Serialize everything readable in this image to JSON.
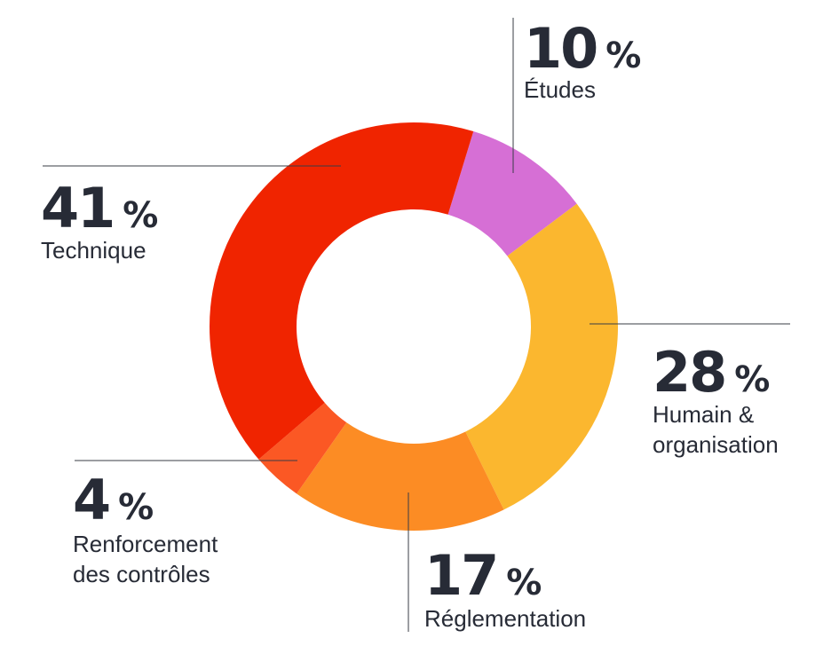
{
  "chart_data": {
    "type": "pie",
    "donut": true,
    "categories": [
      "Études",
      "Humain & organisation",
      "Réglementation",
      "Renforcement des contrôles",
      "Technique"
    ],
    "values": [
      10,
      28,
      17,
      4,
      41
    ],
    "unit": "%",
    "colors": [
      "#d66fd5",
      "#fbb72f",
      "#fc8c24",
      "#fb5824",
      "#f02400"
    ],
    "slices": [
      {
        "key": "etudes",
        "value": "10",
        "unit": "%",
        "label_lines": [
          "Études"
        ],
        "color": "#d66fd5"
      },
      {
        "key": "humain",
        "value": "28",
        "unit": "%",
        "label_lines": [
          "Humain &",
          "organisation"
        ],
        "color": "#fbb72f"
      },
      {
        "key": "reglementation",
        "value": "17",
        "unit": "%",
        "label_lines": [
          "Réglementation"
        ],
        "color": "#fc8c24"
      },
      {
        "key": "renforcement",
        "value": "4",
        "unit": "%",
        "label_lines": [
          "Renforcement",
          "des contrôles"
        ],
        "color": "#fb5824"
      },
      {
        "key": "technique",
        "value": "41",
        "unit": "%",
        "label_lines": [
          "Technique"
        ],
        "color": "#f02400"
      }
    ]
  }
}
